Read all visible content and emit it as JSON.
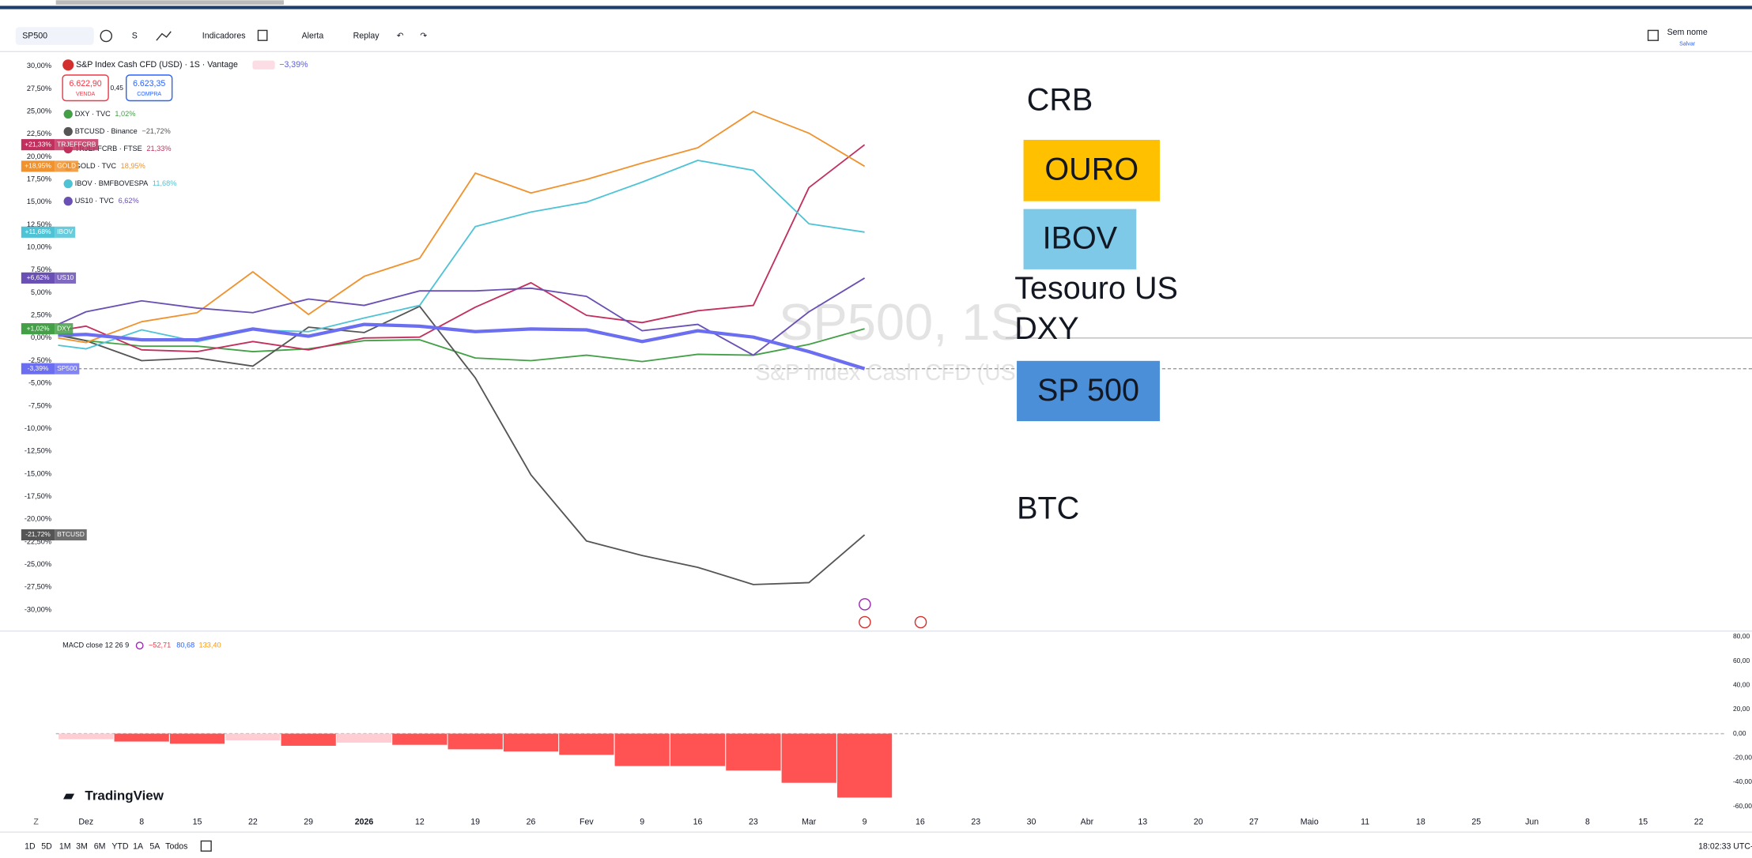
{
  "toolbar": {
    "symbol": "SP500",
    "interval": "S",
    "items": [
      "Indicadores",
      "Alerta",
      "Replay"
    ],
    "layout_name": "Sem nome",
    "save": "Salvar"
  },
  "header": {
    "title": "S&P Index Cash CFD (USD) · 1S · Vantage",
    "change": "−3,39%",
    "sell": {
      "price": "6.622,90",
      "label": "VENDA"
    },
    "spread": "0,45",
    "buy": {
      "price": "6.623,35",
      "label": "COMPRA"
    }
  },
  "watermark": {
    "symbol": "SP500, 1S",
    "description": "S&P Index Cash CFD (USD"
  },
  "chart_data": [
    {
      "type": "line",
      "categories": [
        null,
        "Dez",
        "8",
        "15",
        "22",
        "29",
        "2026",
        "12",
        "19",
        "26",
        "Fev",
        "9",
        "16",
        "23",
        "Mar",
        "9",
        "16",
        "23",
        "30",
        "Abr",
        "13",
        "20",
        "27",
        "Maio",
        "11",
        "18",
        "25",
        "Jun",
        "8",
        "15",
        "22"
      ],
      "ylim": [
        -30,
        30
      ],
      "yticks": [
        {
          "value": 30,
          "label": "30,00%"
        },
        {
          "value": 27.5,
          "label": "27,50%"
        },
        {
          "value": 25,
          "label": "25,00%"
        },
        {
          "value": 22.5,
          "label": "22,50%"
        },
        {
          "value": 20,
          "label": "20,00%"
        },
        {
          "value": 17.5,
          "label": "17,50%"
        },
        {
          "value": 15,
          "label": "15,00%"
        },
        {
          "value": 12.5,
          "label": "12,50%"
        },
        {
          "value": 10,
          "label": "10,00%"
        },
        {
          "value": 7.5,
          "label": "7,50%"
        },
        {
          "value": 5,
          "label": "5,00%"
        },
        {
          "value": 2.5,
          "label": "2,50%"
        },
        {
          "value": 0,
          "label": "0,00%"
        },
        {
          "value": -2.5,
          "label": "-2,50%"
        },
        {
          "value": -5,
          "label": "-5,00%"
        },
        {
          "value": -7.5,
          "label": "-7,50%"
        },
        {
          "value": -10,
          "label": "-10,00%"
        },
        {
          "value": -12.5,
          "label": "-12,50%"
        },
        {
          "value": -15,
          "label": "-15,00%"
        },
        {
          "value": -17.5,
          "label": "-17,50%"
        },
        {
          "value": -20,
          "label": "-20,00%"
        },
        {
          "value": -22.5,
          "label": "-22,50%"
        },
        {
          "value": -25,
          "label": "-25,00%"
        },
        {
          "value": -27.5,
          "label": "-27,50%"
        },
        {
          "value": -30,
          "label": "-30,00%"
        }
      ],
      "grid": false,
      "series": [
        {
          "name": "DXY · TVC",
          "tag": "DXY",
          "change": "1,02%",
          "end_label": "+1,02%",
          "color": "#43a047",
          "values": [
            0.4,
            -0.3,
            -0.9,
            -0.9,
            -1.5,
            -1.2,
            -0.3,
            -0.2,
            -2.2,
            -2.5,
            -1.9,
            -2.6,
            -1.8,
            -1.9,
            -0.7,
            1.02,
            null,
            null,
            null,
            null,
            null,
            null,
            null,
            null,
            null,
            null,
            null,
            null,
            null,
            null,
            null
          ]
        },
        {
          "name": "BTCUSD · Binance",
          "tag": "BTCUSD",
          "change": "−21,72%",
          "end_label": "-21,72%",
          "color": "#555555",
          "values": [
            0.3,
            -0.3,
            -2.5,
            -2.2,
            -3.1,
            1.2,
            0.6,
            3.5,
            -4.4,
            -15.1,
            -22.4,
            -24,
            -25.3,
            -27.2,
            -27,
            -21.72,
            null,
            null,
            null,
            null,
            null,
            null,
            null,
            null,
            null,
            null,
            null,
            null,
            null,
            null,
            null
          ]
        },
        {
          "name": "TRJEFFCRB · FTSE",
          "tag": "TRJEFFCRB",
          "change": "21,33%",
          "end_label": "+21,33%",
          "color": "#c2305e",
          "values": [
            0.8,
            1.3,
            -1.3,
            -1.5,
            -0.4,
            -1.3,
            0,
            0.1,
            3.4,
            6.1,
            2.5,
            1.7,
            3,
            3.6,
            16.6,
            21.33,
            null,
            null,
            null,
            null,
            null,
            null,
            null,
            null,
            null,
            null,
            null,
            null,
            null,
            null,
            null
          ]
        },
        {
          "name": "GOLD · TVC",
          "tag": "GOLD",
          "change": "18,95%",
          "end_label": "+18,95%",
          "color": "#f0922e",
          "values": [
            0,
            -0.5,
            1.8,
            2.8,
            7.3,
            2.6,
            6.8,
            8.8,
            18.2,
            16,
            17.5,
            19.3,
            21,
            25,
            22.6,
            18.95,
            null,
            null,
            null,
            null,
            null,
            null,
            null,
            null,
            null,
            null,
            null,
            null,
            null,
            null,
            null
          ]
        },
        {
          "name": "IBOV · BMFBOVESPA",
          "tag": "IBOV",
          "change": "11,68%",
          "end_label": "+11,68%",
          "color": "#4fc3d6",
          "values": [
            -0.8,
            -1.2,
            0.9,
            -0.4,
            0.9,
            0.7,
            2.2,
            3.6,
            12.3,
            13.9,
            15,
            17.2,
            19.6,
            18.5,
            12.6,
            11.68,
            null,
            null,
            null,
            null,
            null,
            null,
            null,
            null,
            null,
            null,
            null,
            null,
            null,
            null,
            null
          ]
        },
        {
          "name": "US10 · TVC",
          "tag": "US10",
          "change": "6,62%",
          "end_label": "+6,62%",
          "color": "#6a4fb5",
          "values": [
            1.5,
            2.9,
            4.1,
            3.3,
            2.8,
            4.3,
            3.6,
            5.2,
            5.2,
            5.5,
            4.6,
            0.8,
            1.5,
            -1.9,
            2.9,
            6.62,
            null,
            null,
            null,
            null,
            null,
            null,
            null,
            null,
            null,
            null,
            null,
            null,
            null,
            null,
            null
          ]
        },
        {
          "tag": "SP500",
          "end_label": "-3,39%",
          "color": "#6b6ef0",
          "width": 3,
          "values": [
            0.3,
            0.4,
            -0.2,
            -0.2,
            1,
            0.2,
            1.5,
            1.3,
            0.7,
            1,
            0.9,
            -0.4,
            0.8,
            0.1,
            -1.5,
            -3.39,
            null,
            null,
            null,
            null,
            null,
            null,
            null,
            null,
            null,
            null,
            null,
            null,
            null,
            null,
            null
          ]
        }
      ]
    },
    {
      "type": "bar",
      "legend": {
        "title": "MACD close 12 26 9",
        "values": [
          {
            "text": "−52,71",
            "color": "#f23645"
          },
          {
            "text": "80,68",
            "color": "#2962ff"
          },
          {
            "text": "133,40",
            "color": "#ff9800"
          }
        ]
      },
      "ylim": [
        -60,
        80
      ],
      "yticks": [
        {
          "value": 80,
          "label": "80,00"
        },
        {
          "value": 60,
          "label": "60,00"
        },
        {
          "value": 40,
          "label": "40,00"
        },
        {
          "value": 20,
          "label": "20,00"
        },
        {
          "value": 0,
          "label": "0,00"
        },
        {
          "value": -20,
          "label": "-20,00"
        },
        {
          "value": -40,
          "label": "-40,00"
        },
        {
          "value": -60,
          "label": "-60,00"
        }
      ],
      "values": [
        null,
        -4.6,
        -6.5,
        -8.3,
        -5.5,
        -10,
        -7.4,
        -9.2,
        -12.9,
        -14.7,
        -17.5,
        -26.7,
        -26.7,
        -30.4,
        -40.5,
        -52.71,
        null,
        null,
        null,
        null,
        null,
        null,
        null,
        null,
        null,
        null,
        null,
        null,
        null,
        null,
        null
      ],
      "colors": [
        null,
        "#ffcdd2",
        "#ff5252",
        "#ff5252",
        "#ffcdd2",
        "#ff5252",
        "#ffcdd2",
        "#ff5252",
        "#ff5252",
        "#ff5252",
        "#ff5252",
        "#ff5252",
        "#ff5252",
        "#ff5252",
        "#ff5252",
        "#ff5252",
        null,
        null,
        null,
        null,
        null,
        null,
        null,
        null,
        null,
        null,
        null,
        null,
        null,
        null,
        null
      ]
    }
  ],
  "annotations": [
    {
      "text": "CRB"
    },
    {
      "text": "OURO",
      "box": "#ffc000"
    },
    {
      "text": "IBOV",
      "box": "#7ec8e8"
    },
    {
      "text": "Tesouro US"
    },
    {
      "text": "DXY"
    },
    {
      "text": "SP 500",
      "box": "#4a8fd8"
    },
    {
      "text": "BTC"
    }
  ],
  "brand": "TradingView",
  "ranges": [
    "1D",
    "5D",
    "1M",
    "3M",
    "6M",
    "YTD",
    "1A",
    "5A",
    "Todos"
  ],
  "clock": "18:02:33 UTC-"
}
